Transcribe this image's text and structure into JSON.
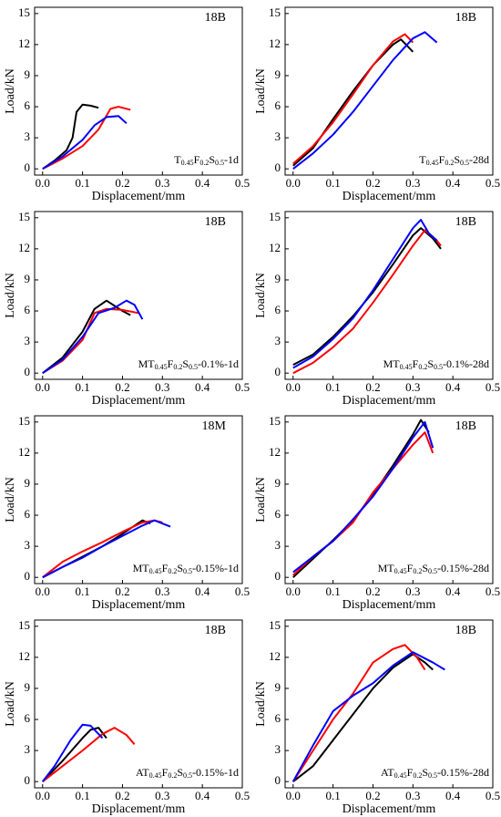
{
  "chart_data": [
    {
      "type": "line",
      "annotation": "18B",
      "label": [
        "T",
        "0.45",
        "F",
        "0.2",
        "S",
        "0.5",
        "-1d"
      ],
      "xlabel": "Displacement/mm",
      "ylabel": "Load/kN",
      "xlim": [
        -0.02,
        0.5
      ],
      "ylim": [
        -0.6,
        15.6
      ],
      "xticks": [
        {
          "value": 0,
          "label": "0.0"
        },
        0.1,
        0.2,
        0.3,
        0.4,
        0.5
      ],
      "yticks": [
        0,
        3,
        6,
        9,
        12,
        15
      ],
      "series": [
        {
          "color": "#000000",
          "x": [
            0,
            0.03,
            0.06,
            0.075,
            0.085,
            0.1,
            0.12,
            0.14
          ],
          "values": [
            0,
            0.8,
            1.8,
            3,
            5.5,
            6.2,
            6.1,
            5.9
          ]
        },
        {
          "color": "#ff0000",
          "x": [
            0,
            0.05,
            0.1,
            0.14,
            0.17,
            0.19,
            0.22
          ],
          "values": [
            0,
            1,
            2.2,
            3.8,
            5.8,
            6,
            5.7
          ]
        },
        {
          "color": "#0000ff",
          "x": [
            0,
            0.05,
            0.1,
            0.13,
            0.16,
            0.19,
            0.21
          ],
          "values": [
            0,
            1.2,
            2.8,
            4.2,
            5,
            5.1,
            4.4
          ]
        }
      ]
    },
    {
      "type": "line",
      "annotation": "18B",
      "label": [
        "T",
        "0.45",
        "F",
        "0.2",
        "S",
        "0.5",
        "-28d"
      ],
      "xlabel": "Displacement/mm",
      "ylabel": "Load/kN",
      "xlim": [
        -0.02,
        0.5
      ],
      "ylim": [
        -0.6,
        15.6
      ],
      "xticks": [
        {
          "value": 0,
          "label": "0.0"
        },
        0.1,
        0.2,
        0.3,
        0.4,
        0.5
      ],
      "yticks": [
        0,
        3,
        6,
        9,
        12,
        15
      ],
      "series": [
        {
          "color": "#000000",
          "x": [
            0,
            0.05,
            0.1,
            0.15,
            0.2,
            0.25,
            0.27,
            0.3
          ],
          "values": [
            0.3,
            2,
            4.8,
            7.5,
            10,
            12,
            12.5,
            11.3
          ]
        },
        {
          "color": "#ff0000",
          "x": [
            0,
            0.05,
            0.1,
            0.15,
            0.2,
            0.25,
            0.28,
            0.3
          ],
          "values": [
            0.5,
            2.2,
            4.5,
            7.2,
            10,
            12.3,
            13,
            12.2
          ]
        },
        {
          "color": "#0000ff",
          "x": [
            0,
            0.05,
            0.1,
            0.15,
            0.2,
            0.25,
            0.3,
            0.33,
            0.36
          ],
          "values": [
            0,
            1.5,
            3.3,
            5.5,
            8,
            10.5,
            12.6,
            13.2,
            12.2
          ]
        }
      ]
    },
    {
      "type": "line",
      "annotation": "18B",
      "label": [
        "MT",
        "0.45",
        "F",
        "0.2",
        "S",
        "0.5",
        "-0.1%-1d"
      ],
      "xlabel": "Displacement/mm",
      "ylabel": "Load/kN",
      "xlim": [
        -0.02,
        0.5
      ],
      "ylim": [
        -0.6,
        15.6
      ],
      "xticks": [
        {
          "value": 0,
          "label": "0.0"
        },
        0.1,
        0.2,
        0.3,
        0.4,
        0.5
      ],
      "yticks": [
        0,
        3,
        6,
        9,
        12,
        15
      ],
      "series": [
        {
          "color": "#000000",
          "x": [
            0,
            0.05,
            0.1,
            0.13,
            0.16,
            0.2,
            0.22
          ],
          "values": [
            0,
            1.5,
            4,
            6.2,
            7,
            6,
            5.6
          ]
        },
        {
          "color": "#ff0000",
          "x": [
            0,
            0.05,
            0.1,
            0.13,
            0.16,
            0.2,
            0.24
          ],
          "values": [
            0,
            1.2,
            3.2,
            5.8,
            6.2,
            6.1,
            5.8
          ]
        },
        {
          "color": "#0000ff",
          "x": [
            0,
            0.05,
            0.1,
            0.14,
            0.18,
            0.21,
            0.23,
            0.25
          ],
          "values": [
            0,
            1.3,
            3.5,
            5.8,
            6.3,
            7,
            6.6,
            5.2
          ]
        }
      ]
    },
    {
      "type": "line",
      "annotation": "18B",
      "label": [
        "MT",
        "0.45",
        "F",
        "0.2",
        "S",
        "0.5",
        "-0.1%-28d"
      ],
      "xlabel": "Displacement/mm",
      "ylabel": "Load/kN",
      "xlim": [
        -0.02,
        0.5
      ],
      "ylim": [
        -0.6,
        15.6
      ],
      "xticks": [
        {
          "value": 0,
          "label": "0.0"
        },
        0.1,
        0.2,
        0.3,
        0.4,
        0.5
      ],
      "yticks": [
        0,
        3,
        6,
        9,
        12,
        15
      ],
      "series": [
        {
          "color": "#000000",
          "x": [
            0,
            0.05,
            0.1,
            0.15,
            0.2,
            0.25,
            0.3,
            0.32,
            0.35,
            0.37
          ],
          "values": [
            0.8,
            1.8,
            3.5,
            5.5,
            7.8,
            10.5,
            13.3,
            14,
            13,
            12
          ]
        },
        {
          "color": "#ff0000",
          "x": [
            0,
            0.05,
            0.1,
            0.15,
            0.2,
            0.25,
            0.3,
            0.33,
            0.36,
            0.37
          ],
          "values": [
            0,
            1,
            2.5,
            4.3,
            6.8,
            9.5,
            12.3,
            13.8,
            12.8,
            12.3
          ]
        },
        {
          "color": "#0000ff",
          "x": [
            0,
            0.05,
            0.1,
            0.15,
            0.2,
            0.25,
            0.3,
            0.32,
            0.34,
            0.36
          ],
          "values": [
            0.5,
            1.6,
            3.3,
            5.3,
            8,
            11,
            14,
            14.8,
            13.5,
            12.8
          ]
        }
      ]
    },
    {
      "type": "line",
      "annotation": "18M",
      "label": [
        "MT",
        "0.45",
        "F",
        "0.2",
        "S",
        "0.5",
        "-0.15%-1d"
      ],
      "xlabel": "Displacement/mm",
      "ylabel": "Load/kN",
      "xlim": [
        -0.02,
        0.5
      ],
      "ylim": [
        -0.6,
        15.6
      ],
      "xticks": [
        {
          "value": 0,
          "label": "0.0"
        },
        0.1,
        0.2,
        0.3,
        0.4,
        0.5
      ],
      "yticks": [
        0,
        3,
        6,
        9,
        12,
        15
      ],
      "series": [
        {
          "color": "#000000",
          "x": [
            0,
            0.05,
            0.1,
            0.15,
            0.2,
            0.25,
            0.27
          ],
          "values": [
            0,
            1,
            2,
            3,
            4.2,
            5.5,
            5.2
          ]
        },
        {
          "color": "#ff0000",
          "x": [
            0,
            0.05,
            0.1,
            0.15,
            0.2,
            0.25,
            0.28,
            0.3
          ],
          "values": [
            0,
            1.5,
            2.5,
            3.4,
            4.4,
            5.3,
            5.5,
            5.3
          ]
        },
        {
          "color": "#0000ff",
          "x": [
            0,
            0.05,
            0.1,
            0.15,
            0.2,
            0.25,
            0.28,
            0.32
          ],
          "values": [
            0,
            1,
            1.9,
            3,
            4,
            5,
            5.5,
            4.9
          ]
        }
      ]
    },
    {
      "type": "line",
      "annotation": "18B",
      "label": [
        "MT",
        "0.45",
        "F",
        "0.2",
        "S",
        "0.5",
        "-0.15%-28d"
      ],
      "xlabel": "Displacement/mm",
      "ylabel": "Load/kN",
      "xlim": [
        -0.02,
        0.5
      ],
      "ylim": [
        -0.6,
        15.6
      ],
      "xticks": [
        {
          "value": 0,
          "label": "0.0"
        },
        0.1,
        0.2,
        0.3,
        0.4,
        0.5
      ],
      "yticks": [
        0,
        3,
        6,
        9,
        12,
        15
      ],
      "series": [
        {
          "color": "#000000",
          "x": [
            0,
            0.05,
            0.1,
            0.15,
            0.2,
            0.25,
            0.3,
            0.32,
            0.34
          ],
          "values": [
            0,
            1.8,
            3.6,
            5.5,
            8,
            10.8,
            13.8,
            15.2,
            14
          ]
        },
        {
          "color": "#ff0000",
          "x": [
            0,
            0.05,
            0.1,
            0.15,
            0.2,
            0.25,
            0.3,
            0.33,
            0.35
          ],
          "values": [
            0.2,
            2,
            3.5,
            5.3,
            8.2,
            10.5,
            12.8,
            14,
            12
          ]
        },
        {
          "color": "#0000ff",
          "x": [
            0,
            0.05,
            0.1,
            0.15,
            0.2,
            0.25,
            0.3,
            0.33,
            0.35
          ],
          "values": [
            0.5,
            2,
            3.5,
            5.6,
            7.8,
            10.5,
            13.5,
            15,
            12.5
          ]
        }
      ]
    },
    {
      "type": "line",
      "annotation": "18B",
      "label": [
        "AT",
        "0.45",
        "F",
        "0.2",
        "S",
        "0.5",
        "-0.15%-1d"
      ],
      "xlabel": "Displacement/mm",
      "ylabel": "Load/kN",
      "xlim": [
        -0.02,
        0.5
      ],
      "ylim": [
        -0.6,
        15.6
      ],
      "xticks": [
        {
          "value": 0,
          "label": "0.0"
        },
        0.1,
        0.2,
        0.3,
        0.4,
        0.5
      ],
      "yticks": [
        0,
        3,
        6,
        9,
        12,
        15
      ],
      "series": [
        {
          "color": "#000000",
          "x": [
            0,
            0.05,
            0.1,
            0.12,
            0.14,
            0.16
          ],
          "values": [
            0,
            2,
            4.2,
            5,
            5.2,
            4.2
          ]
        },
        {
          "color": "#ff0000",
          "x": [
            0,
            0.05,
            0.1,
            0.15,
            0.18,
            0.21,
            0.23
          ],
          "values": [
            0,
            1.5,
            3,
            4.6,
            5.2,
            4.5,
            3.6
          ]
        },
        {
          "color": "#0000ff",
          "x": [
            0,
            0.03,
            0.07,
            0.1,
            0.12,
            0.15
          ],
          "values": [
            0,
            1.5,
            4,
            5.5,
            5.4,
            4.2
          ]
        }
      ]
    },
    {
      "type": "line",
      "annotation": "18B",
      "label": [
        "AT",
        "0.45",
        "F",
        "0.2",
        "S",
        "0.5",
        "-0.15%-28d"
      ],
      "xlabel": "Displacement/mm",
      "ylabel": "Load/kN",
      "xlim": [
        -0.02,
        0.5
      ],
      "ylim": [
        -0.6,
        15.6
      ],
      "xticks": [
        {
          "value": 0,
          "label": "0.0"
        },
        0.1,
        0.2,
        0.3,
        0.4,
        0.5
      ],
      "yticks": [
        0,
        3,
        6,
        9,
        12,
        15
      ],
      "series": [
        {
          "color": "#000000",
          "x": [
            0,
            0.05,
            0.1,
            0.15,
            0.2,
            0.25,
            0.3,
            0.33,
            0.35
          ],
          "values": [
            0,
            1.5,
            4,
            6.5,
            9,
            11,
            12.3,
            11.5,
            10.8
          ]
        },
        {
          "color": "#ff0000",
          "x": [
            0,
            0.05,
            0.1,
            0.15,
            0.2,
            0.25,
            0.28,
            0.31,
            0.33
          ],
          "values": [
            0,
            3,
            6,
            8.5,
            11.5,
            12.8,
            13.2,
            12,
            10.8
          ]
        },
        {
          "color": "#0000ff",
          "x": [
            0,
            0.05,
            0.1,
            0.15,
            0.2,
            0.25,
            0.3,
            0.35,
            0.38
          ],
          "values": [
            0,
            3.5,
            6.8,
            8.3,
            9.5,
            11.2,
            12.5,
            11.5,
            10.8
          ]
        }
      ]
    }
  ]
}
